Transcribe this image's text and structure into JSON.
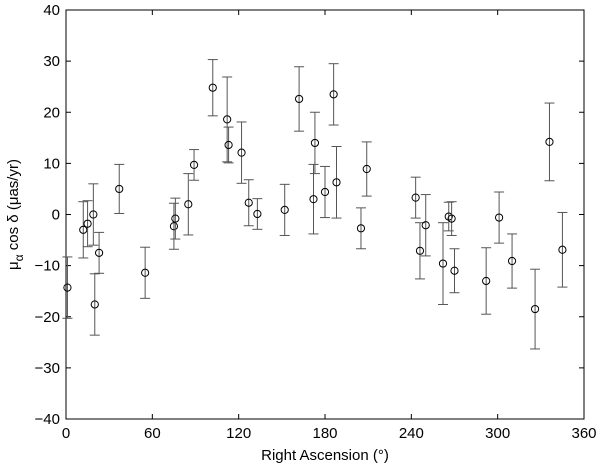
{
  "chart_data": {
    "type": "scatter",
    "title": "",
    "xlabel": "Right Ascension (°)",
    "ylabel": {
      "symbol": "μ",
      "subscript": "α",
      "rest": " cos δ (μas/yr)"
    },
    "xlim": [
      0,
      360
    ],
    "ylim": [
      -40,
      40
    ],
    "x_ticks": [
      0,
      60,
      120,
      180,
      240,
      300,
      360
    ],
    "y_ticks": [
      -40,
      -30,
      -20,
      -10,
      0,
      10,
      20,
      30,
      40
    ],
    "x_tick_labels": [
      "0",
      "60",
      "120",
      "180",
      "240",
      "300",
      "360"
    ],
    "y_tick_labels": [
      "−40",
      "−30",
      "−20",
      "−10",
      "0",
      "10",
      "20",
      "30",
      "40"
    ],
    "grid": false,
    "legend": "none",
    "marker": "open-circle",
    "series": [
      {
        "points": [
          {
            "x": 1,
            "y": -14.3,
            "err_low": 6,
            "err_high": 6
          },
          {
            "x": 12,
            "y": -3.0,
            "err_low": 5.5,
            "err_high": 5.5
          },
          {
            "x": 15,
            "y": -1.8,
            "err_low": 4.5,
            "err_high": 4.5
          },
          {
            "x": 19,
            "y": 0.0,
            "err_low": 6,
            "err_high": 6
          },
          {
            "x": 20,
            "y": -17.6,
            "err_low": 6,
            "err_high": 6
          },
          {
            "x": 23,
            "y": -7.5,
            "err_low": 4,
            "err_high": 4
          },
          {
            "x": 37,
            "y": 5.0,
            "err_low": 4.8,
            "err_high": 4.8
          },
          {
            "x": 55,
            "y": -11.4,
            "err_low": 5,
            "err_high": 5
          },
          {
            "x": 75,
            "y": -2.3,
            "err_low": 4.5,
            "err_high": 4.5
          },
          {
            "x": 76,
            "y": -0.8,
            "err_low": 4,
            "err_high": 4
          },
          {
            "x": 85,
            "y": 2.0,
            "err_low": 6,
            "err_high": 6
          },
          {
            "x": 89,
            "y": 9.7,
            "err_low": 3,
            "err_high": 3
          },
          {
            "x": 102,
            "y": 24.8,
            "err_low": 5.5,
            "err_high": 5.5
          },
          {
            "x": 112,
            "y": 18.6,
            "err_low": 8.3,
            "err_high": 8.3
          },
          {
            "x": 113,
            "y": 13.6,
            "err_low": 3.5,
            "err_high": 3.5
          },
          {
            "x": 122,
            "y": 12.1,
            "err_low": 6,
            "err_high": 6
          },
          {
            "x": 127,
            "y": 2.3,
            "err_low": 4.5,
            "err_high": 4.5
          },
          {
            "x": 133,
            "y": 0.1,
            "err_low": 3,
            "err_high": 3
          },
          {
            "x": 152,
            "y": 0.9,
            "err_low": 5,
            "err_high": 5
          },
          {
            "x": 162,
            "y": 22.6,
            "err_low": 6.3,
            "err_high": 6.3
          },
          {
            "x": 172,
            "y": 3.0,
            "err_low": 6.8,
            "err_high": 6.8
          },
          {
            "x": 173,
            "y": 14.0,
            "err_low": 6,
            "err_high": 6
          },
          {
            "x": 180,
            "y": 4.4,
            "err_low": 5,
            "err_high": 5
          },
          {
            "x": 186,
            "y": 23.5,
            "err_low": 6,
            "err_high": 6
          },
          {
            "x": 188,
            "y": 6.3,
            "err_low": 7,
            "err_high": 7
          },
          {
            "x": 205,
            "y": -2.7,
            "err_low": 4,
            "err_high": 4
          },
          {
            "x": 209,
            "y": 8.9,
            "err_low": 5.3,
            "err_high": 5.3
          },
          {
            "x": 243,
            "y": 3.3,
            "err_low": 4,
            "err_high": 4
          },
          {
            "x": 246,
            "y": -7.1,
            "err_low": 5.5,
            "err_high": 5.5
          },
          {
            "x": 250,
            "y": -2.1,
            "err_low": 6,
            "err_high": 6
          },
          {
            "x": 262,
            "y": -9.6,
            "err_low": 8,
            "err_high": 8
          },
          {
            "x": 266,
            "y": -0.4,
            "err_low": 2.8,
            "err_high": 2.8
          },
          {
            "x": 268,
            "y": -0.8,
            "err_low": 3.3,
            "err_high": 3.3
          },
          {
            "x": 270,
            "y": -11.0,
            "err_low": 4.3,
            "err_high": 4.3
          },
          {
            "x": 292,
            "y": -13.0,
            "err_low": 6.5,
            "err_high": 6.5
          },
          {
            "x": 301,
            "y": -0.6,
            "err_low": 5,
            "err_high": 5
          },
          {
            "x": 310,
            "y": -9.1,
            "err_low": 5.3,
            "err_high": 5.3
          },
          {
            "x": 326,
            "y": -18.5,
            "err_low": 7.8,
            "err_high": 7.8
          },
          {
            "x": 336,
            "y": 14.2,
            "err_low": 7.6,
            "err_high": 7.6
          },
          {
            "x": 345,
            "y": -6.9,
            "err_low": 7.3,
            "err_high": 7.3
          }
        ]
      }
    ]
  }
}
